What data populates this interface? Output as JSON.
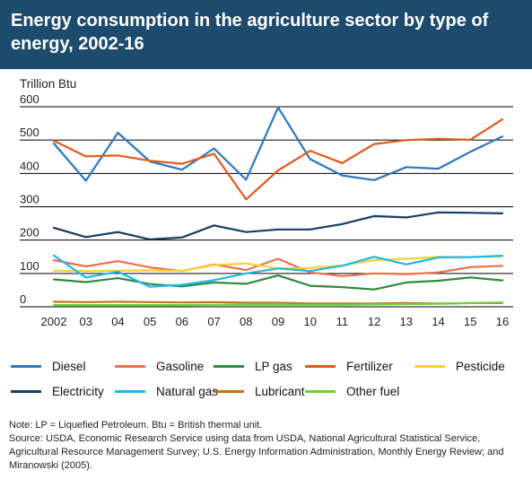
{
  "title": "Energy consumption in the agriculture sector by type of energy, 2002-16",
  "notes": {
    "note": "Note: LP = Liquefied Petroleum. Btu = British thermal unit.",
    "source": "Source: USDA, Economic Research Service using data from USDA, National Agricultural Statistical Service, Agricultural Resource Management Survey; U.S. Energy Information Administration, Monthly Energy Review; and Miranowski (2005)."
  },
  "chart_data": {
    "type": "line",
    "title": "Energy consumption in the agriculture sector by type of energy, 2002-16",
    "ylabel": "Trillion Btu",
    "xlabel": "",
    "ylim": [
      0,
      600
    ],
    "yticks": [
      0,
      100,
      200,
      300,
      400,
      500,
      600
    ],
    "grid": "horizontal",
    "legend_position": "bottom",
    "categories": [
      "2002",
      "03",
      "04",
      "05",
      "06",
      "07",
      "08",
      "09",
      "10",
      "11",
      "12",
      "13",
      "14",
      "15",
      "16"
    ],
    "series": [
      {
        "name": "Diesel",
        "color": "#2b78c2",
        "values": [
          490,
          378,
          522,
          436,
          411,
          475,
          381,
          598,
          443,
          394,
          380,
          419,
          414,
          465,
          511
        ]
      },
      {
        "name": "Gasoline",
        "color": "#ef6f4a",
        "values": [
          140,
          121,
          137,
          118,
          107,
          127,
          110,
          144,
          103,
          92,
          100,
          98,
          103,
          119,
          123
        ]
      },
      {
        "name": "LP gas",
        "color": "#2e8b3d",
        "values": [
          82,
          74,
          86,
          68,
          61,
          73,
          69,
          94,
          63,
          59,
          52,
          73,
          78,
          88,
          79
        ]
      },
      {
        "name": "Fertilizer",
        "color": "#e05a1c",
        "values": [
          498,
          451,
          454,
          438,
          429,
          459,
          322,
          409,
          468,
          431,
          488,
          500,
          504,
          501,
          562
        ]
      },
      {
        "name": "Pesticide",
        "color": "#f7d12d",
        "values": [
          108,
          107,
          108,
          109,
          108,
          125,
          130,
          115,
          116,
          124,
          140,
          144,
          150,
          149,
          151
        ]
      },
      {
        "name": "Electricity",
        "color": "#163d63",
        "values": [
          237,
          209,
          224,
          202,
          208,
          244,
          224,
          232,
          232,
          248,
          272,
          268,
          283,
          282,
          280
        ]
      },
      {
        "name": "Natural gas",
        "color": "#1fb7e8",
        "values": [
          154,
          88,
          105,
          60,
          66,
          80,
          100,
          115,
          107,
          123,
          150,
          127,
          148,
          149,
          153
        ]
      },
      {
        "name": "Lubricant",
        "color": "#c07617",
        "values": [
          15,
          14,
          15,
          14,
          13,
          14,
          12,
          12,
          10,
          10,
          10,
          11,
          10,
          11,
          11
        ]
      },
      {
        "name": "Other fuel",
        "color": "#6bd13b",
        "values": [
          5,
          5,
          5,
          5,
          5,
          6,
          6,
          6,
          6,
          6,
          7,
          8,
          9,
          11,
          13
        ]
      }
    ]
  }
}
